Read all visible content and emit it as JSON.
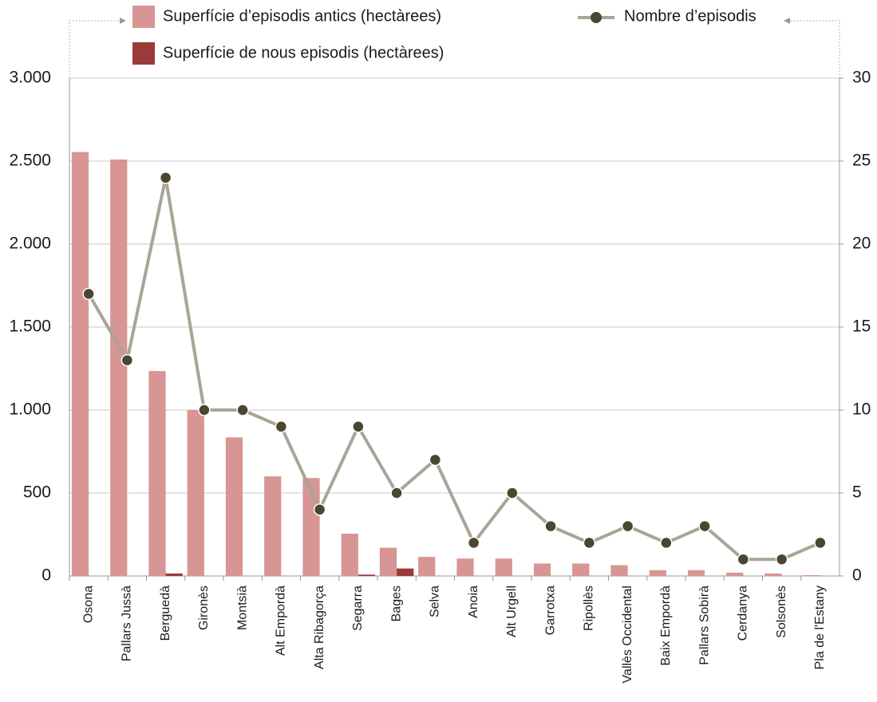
{
  "chart_data": {
    "type": "bar_line",
    "categories": [
      "Osona",
      "Pallars Jussà",
      "Berguedà",
      "Gironès",
      "Montsià",
      "Alt Empordà",
      "Alta Ribagorça",
      "Segarra",
      "Bages",
      "Selva",
      "Anoia",
      "Alt Urgell",
      "Garrotxa",
      "Ripollès",
      "Vallès Occidental",
      "Baix Empordà",
      "Pallars Sobirà",
      "Cerdanya",
      "Solsonès",
      "Pla de l'Estany"
    ],
    "series": [
      {
        "name": "Superfície d’episodis antics (hectàrees)",
        "color": "#d79594",
        "kind": "bar",
        "values": [
          2555,
          2510,
          1235,
          1000,
          835,
          600,
          590,
          255,
          170,
          115,
          105,
          105,
          75,
          75,
          65,
          35,
          35,
          20,
          15,
          5
        ]
      },
      {
        "name": "Superfície de nous episodis (hectàrees)",
        "color": "#9b3a3a",
        "kind": "bar",
        "values": [
          0,
          0,
          15,
          0,
          0,
          0,
          0,
          8,
          45,
          0,
          0,
          0,
          0,
          0,
          0,
          0,
          0,
          0,
          0,
          0
        ]
      },
      {
        "name": "Nombre d’episodis",
        "color": "#a8a597",
        "marker_color": "#4a4630",
        "kind": "line",
        "axis": "y2",
        "values": [
          17,
          13,
          24,
          10,
          10,
          9,
          4,
          9,
          5,
          7,
          2,
          5,
          3,
          2,
          3,
          2,
          3,
          1,
          1,
          2
        ]
      }
    ],
    "ylim": [
      0,
      3000
    ],
    "yticks": [
      0,
      500,
      {
        "value": 1000,
        "label": "1.000"
      },
      {
        "value": 1500,
        "label": "1.500"
      },
      {
        "value": 2000,
        "label": "2.000"
      },
      {
        "value": 2500,
        "label": "2.500"
      },
      {
        "value": 3000,
        "label": "3.000"
      }
    ],
    "y2lim": [
      0,
      30
    ],
    "y2ticks": [
      0,
      5,
      10,
      15,
      20,
      25,
      30
    ],
    "grid": true
  }
}
